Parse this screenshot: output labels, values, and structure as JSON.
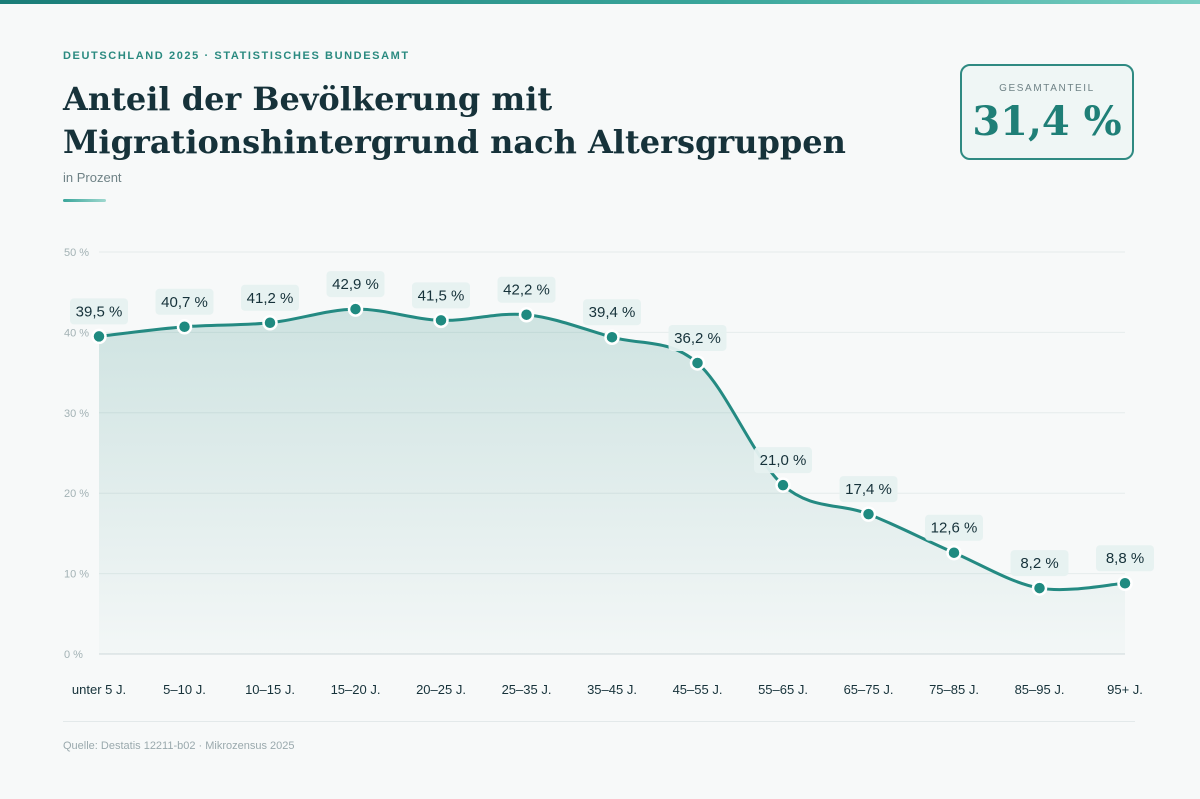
{
  "kicker": "DEUTSCHLAND 2025 · STATISTISCHES BUNDESAMT",
  "title": "Anteil der Bevölkerung mit Migrationshintergrund nach Altersgruppen",
  "subtitle": "in Prozent",
  "kpi": {
    "label": "GESAMTANTEIL",
    "value": "31,4 %"
  },
  "source": "Quelle: Destatis 12211-b02 · Mikrozensus 2025",
  "colors": {
    "accent": "#1f8a80",
    "line": "#248a82",
    "text": "#16323a",
    "grid": "#e6ecec",
    "label_bg": "#e6f1f0"
  },
  "chart_data": {
    "type": "area",
    "categories": [
      "unter 5 J.",
      "5–10 J.",
      "10–15 J.",
      "15–20 J.",
      "20–25 J.",
      "25–35 J.",
      "35–45 J.",
      "45–55 J.",
      "55–65 J.",
      "65–75 J.",
      "75–85 J.",
      "85–95 J.",
      "95+ J."
    ],
    "values": [
      39.5,
      40.7,
      41.2,
      42.9,
      41.5,
      42.2,
      39.4,
      36.2,
      21.0,
      17.4,
      12.6,
      8.2,
      8.8
    ],
    "data_labels": [
      "39,5 %",
      "40,7 %",
      "41,2 %",
      "42,9 %",
      "41,5 %",
      "42,2 %",
      "39,4 %",
      "36,2 %",
      "21,0 %",
      "17,4 %",
      "12,6 %",
      "8,2 %",
      "8,8 %"
    ],
    "y_ticks": [
      0,
      10,
      20,
      30,
      40,
      50
    ],
    "y_tick_labels": [
      "0 %",
      "10 %",
      "20 %",
      "30 %",
      "40 %",
      "50 %"
    ],
    "ylim": [
      0,
      50
    ],
    "grid": true,
    "smooth": true,
    "legend": false
  }
}
